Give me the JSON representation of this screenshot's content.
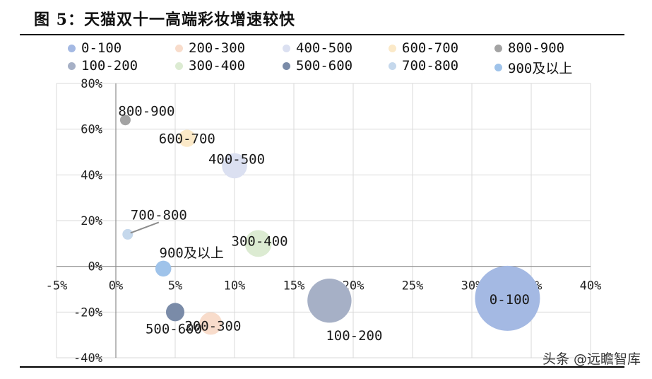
{
  "figure": {
    "prefix": "图 ",
    "number": "5",
    "title": "：天猫双十一高端彩妆增速较快"
  },
  "watermark": "头条 @远瞻智库",
  "chart_data": {
    "type": "bubble",
    "x_ticks": [
      "-5%",
      "0%",
      "5%",
      "10%",
      "15%",
      "20%",
      "25%",
      "30%",
      "35%",
      "40%"
    ],
    "y_ticks": [
      "80%",
      "60%",
      "40%",
      "20%",
      "0%",
      "-20%",
      "-40%"
    ],
    "xlim": [
      -5,
      40
    ],
    "ylim": [
      -40,
      80
    ],
    "grid": true,
    "legend_position": "top",
    "series": [
      {
        "name": "0-100",
        "x": 33,
        "y": -14,
        "size": 100,
        "color": "#a4b9e3"
      },
      {
        "name": "100-200",
        "x": 18,
        "y": -15,
        "size": 46,
        "color": "#a6b0c6"
      },
      {
        "name": "200-300",
        "x": 8,
        "y": -25,
        "size": 12,
        "color": "#f8dccb"
      },
      {
        "name": "300-400",
        "x": 12,
        "y": 10,
        "size": 17,
        "color": "#dcebd2"
      },
      {
        "name": "400-500",
        "x": 10,
        "y": 44,
        "size": 15,
        "color": "#dbe0f1"
      },
      {
        "name": "500-600",
        "x": 5,
        "y": -20,
        "size": 8,
        "color": "#7a8ba8"
      },
      {
        "name": "600-700",
        "x": 6,
        "y": 56,
        "size": 7,
        "color": "#fbe9c8"
      },
      {
        "name": "700-800",
        "x": 1,
        "y": 14,
        "size": 1.6,
        "color": "#c5d8ec"
      },
      {
        "name": "800-900",
        "x": 0.8,
        "y": 64,
        "size": 1.6,
        "color": "#a3a3a3"
      },
      {
        "name": "900及以上",
        "x": 4,
        "y": -1,
        "size": 6,
        "color": "#9fc3ea"
      }
    ],
    "legend_order": [
      "0-100",
      "200-300",
      "400-500",
      "600-700",
      "800-900",
      "100-200",
      "300-400",
      "500-600",
      "700-800",
      "900及以上"
    ]
  }
}
